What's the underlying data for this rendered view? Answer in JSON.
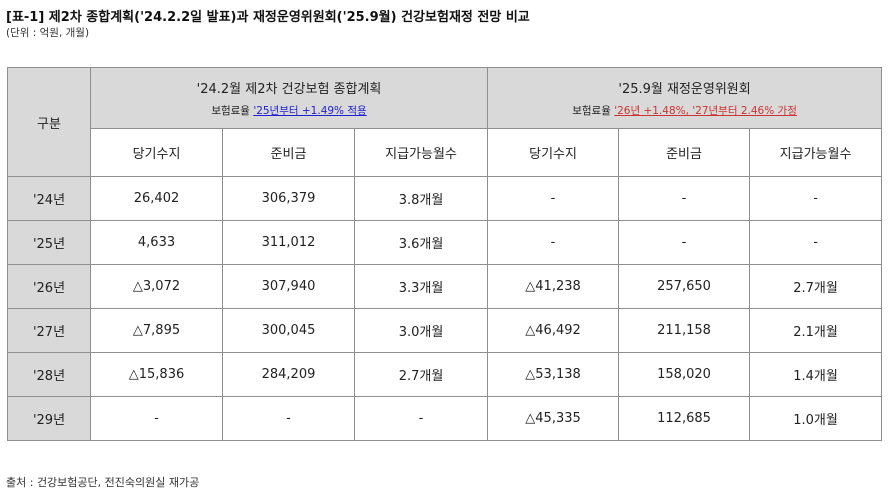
{
  "title": "[표-1] 제2차 종합계획('24.2.2일 발표)과 재정운영위원회('25.9월) 건강보험재정 전망 비교",
  "unit": "(단위 : 억원, 개월)",
  "source": "출처 : 건강보험공단, 전진숙의원실 재가공",
  "table": {
    "row_header": "구분",
    "groups": [
      {
        "title": "'24.2월 제2차 건강보험 종합계획",
        "note_prefix": "보험료율 ",
        "note_link": "'25년부터 +1.49% 적용"
      },
      {
        "title": "'25.9월 재정운영위원회",
        "note_prefix": "보험료율 ",
        "note_link": "'26년 +1.48%, '27년부터 2.46% 가정"
      }
    ],
    "sub_headers": [
      "당기수지",
      "준비금",
      "지급가능월수",
      "당기수지",
      "준비금",
      "지급가능월수"
    ],
    "rows": [
      {
        "year": "'24년",
        "cells": [
          "26,402",
          "306,379",
          "3.8개월",
          "-",
          "-",
          "-"
        ]
      },
      {
        "year": "'25년",
        "cells": [
          "4,633",
          "311,012",
          "3.6개월",
          "-",
          "-",
          "-"
        ]
      },
      {
        "year": "'26년",
        "cells": [
          "△3,072",
          "307,940",
          "3.3개월",
          "△41,238",
          "257,650",
          "2.7개월"
        ]
      },
      {
        "year": "'27년",
        "cells": [
          "△7,895",
          "300,045",
          "3.0개월",
          "△46,492",
          "211,158",
          "2.1개월"
        ]
      },
      {
        "year": "'28년",
        "cells": [
          "△15,836",
          "284,209",
          "2.7개월",
          "△53,138",
          "158,020",
          "1.4개월"
        ]
      },
      {
        "year": "'29년",
        "cells": [
          "-",
          "-",
          "-",
          "△45,335",
          "112,685",
          "1.0개월"
        ]
      }
    ]
  },
  "colors": {
    "header_bg": "#d9d9d9",
    "negative": "#d9534f",
    "link_blue": "#2222cc",
    "link_red": "#cc3333",
    "border": "#8f8f8f"
  }
}
